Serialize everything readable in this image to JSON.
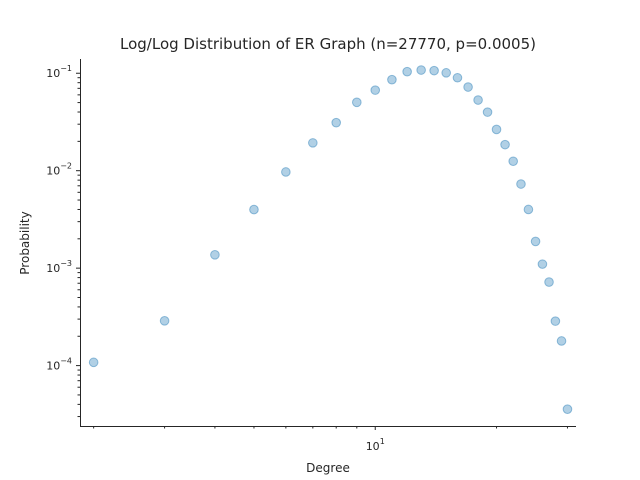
{
  "chart_data": {
    "type": "scatter",
    "title": "Log/Log Distribution of ER Graph (n=27770, p=0.0005)",
    "xlabel": "Degree",
    "ylabel": "Probability",
    "xscale": "log",
    "yscale": "log",
    "xlim": [
      1.85,
      31.5
    ],
    "ylim": [
      2.4e-05,
      0.14
    ],
    "grid": false,
    "point_color": "#1f77b4",
    "x_major_ticks": [
      {
        "value": 10,
        "base": "10",
        "exp": "1"
      }
    ],
    "x_minor_ticks": [
      2,
      3,
      4,
      5,
      6,
      7,
      8,
      9,
      20,
      30
    ],
    "y_major_ticks": [
      {
        "value": 0.0001,
        "base": "10",
        "exp": "−4"
      },
      {
        "value": 0.001,
        "base": "10",
        "exp": "−3"
      },
      {
        "value": 0.01,
        "base": "10",
        "exp": "−2"
      },
      {
        "value": 0.1,
        "base": "10",
        "exp": "−1"
      }
    ],
    "points": [
      {
        "x": 2,
        "y": 0.000108
      },
      {
        "x": 3,
        "y": 0.000288
      },
      {
        "x": 4,
        "y": 0.00137
      },
      {
        "x": 5,
        "y": 0.00399
      },
      {
        "x": 6,
        "y": 0.0097
      },
      {
        "x": 7,
        "y": 0.0193
      },
      {
        "x": 8,
        "y": 0.0311
      },
      {
        "x": 9,
        "y": 0.0503
      },
      {
        "x": 10,
        "y": 0.0671
      },
      {
        "x": 11,
        "y": 0.0859
      },
      {
        "x": 12,
        "y": 0.1037
      },
      {
        "x": 13,
        "y": 0.1079
      },
      {
        "x": 14,
        "y": 0.1063
      },
      {
        "x": 15,
        "y": 0.1009
      },
      {
        "x": 16,
        "y": 0.0899
      },
      {
        "x": 17,
        "y": 0.0722
      },
      {
        "x": 18,
        "y": 0.0531
      },
      {
        "x": 19,
        "y": 0.0399
      },
      {
        "x": 20,
        "y": 0.0265
      },
      {
        "x": 21,
        "y": 0.0185
      },
      {
        "x": 22,
        "y": 0.0125
      },
      {
        "x": 23,
        "y": 0.0073
      },
      {
        "x": 24,
        "y": 0.004
      },
      {
        "x": 25,
        "y": 0.00188
      },
      {
        "x": 26,
        "y": 0.0011
      },
      {
        "x": 27,
        "y": 0.00072
      },
      {
        "x": 28,
        "y": 0.000286
      },
      {
        "x": 29,
        "y": 0.000179
      },
      {
        "x": 30,
        "y": 3.57e-05
      }
    ]
  }
}
